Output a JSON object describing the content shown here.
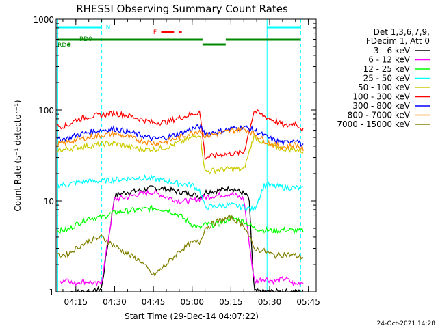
{
  "chart_data": {
    "type": "line",
    "title": "RHESSI Observing Summary Count Rates",
    "ylabel": "Count Rate (s⁻¹ detector⁻¹)",
    "xlabel": "Start Time (29-Dec-14 04:07:22)",
    "y_scale": "log",
    "ylim": [
      1,
      1000
    ],
    "y_ticks": [
      1,
      10,
      100,
      1000
    ],
    "y_tick_labels": [
      "1",
      "10",
      "100",
      "1000"
    ],
    "xlim": [
      "04:07:22",
      "05:48:00"
    ],
    "x_ticks": [
      "04:15",
      "04:30",
      "04:45",
      "05:00",
      "05:15",
      "05:30",
      "05:45"
    ],
    "legend_header": [
      "Det 1,3,6,7,9,",
      "FDecim 1, Att 0"
    ],
    "legend_position": "right",
    "footer_date": "24-Oct-2021 14:28",
    "series": [
      {
        "name": "3 - 6 keV",
        "color": "#000000",
        "x": [
          "04:13",
          "04:14",
          "04:16",
          "04:20",
          "04:22",
          "04:25",
          "04:30",
          "04:35",
          "04:40",
          "04:45",
          "04:50",
          "04:55",
          "05:00",
          "05:03",
          "05:05",
          "05:10",
          "05:15",
          "05:20",
          "05:22",
          "05:24",
          "05:26",
          "05:30",
          "05:35",
          "05:40",
          "05:43"
        ],
        "y": [
          1,
          1,
          1,
          1,
          1,
          1.1,
          11.5,
          12.5,
          13,
          14,
          13.5,
          12.5,
          12,
          11,
          12.5,
          13,
          14,
          12,
          11,
          1,
          1,
          1,
          1,
          1,
          1
        ]
      },
      {
        "name": "6 - 12 keV",
        "color": "#ff00ff",
        "x": [
          "04:09",
          "04:12",
          "04:14",
          "04:16",
          "04:20",
          "04:23",
          "04:25",
          "04:30",
          "04:35",
          "04:40",
          "04:45",
          "04:50",
          "04:55",
          "05:00",
          "05:05",
          "05:10",
          "05:15",
          "05:20",
          "05:24",
          "05:28",
          "05:32",
          "05:36",
          "05:40",
          "05:43"
        ],
        "y": [
          1.3,
          1.4,
          1.2,
          1.3,
          1.3,
          1.2,
          1.3,
          10.5,
          11,
          12,
          12.5,
          11,
          10,
          10,
          11,
          11.5,
          12,
          10.5,
          1.3,
          1.4,
          1.3,
          1.4,
          1.2,
          1.3
        ]
      },
      {
        "name": "12 - 25 keV",
        "color": "#00ff00",
        "x": [
          "04:08",
          "04:12",
          "04:15",
          "04:20",
          "04:25",
          "04:30",
          "04:35",
          "04:40",
          "04:45",
          "04:50",
          "04:55",
          "05:00",
          "05:03",
          "05:05",
          "05:10",
          "05:15",
          "05:20",
          "05:24",
          "05:28",
          "05:32",
          "05:36",
          "05:40",
          "05:43"
        ],
        "y": [
          4.7,
          4.8,
          5.5,
          6.5,
          6.6,
          7.5,
          7.8,
          8.0,
          8.3,
          8.0,
          7.0,
          5.5,
          5.0,
          5.5,
          5.5,
          6.5,
          6.0,
          5.0,
          4.8,
          4.7,
          4.8,
          4.7,
          4.7
        ]
      },
      {
        "name": "25 - 50 keV",
        "color": "#00ffff",
        "x": [
          "04:08",
          "04:12",
          "04:15",
          "04:20",
          "04:25",
          "04:30",
          "04:35",
          "04:40",
          "04:45",
          "04:50",
          "04:55",
          "05:00",
          "05:03",
          "05:05",
          "05:10",
          "05:15",
          "05:20",
          "05:24",
          "05:28",
          "05:32",
          "05:36",
          "05:40",
          "05:43"
        ],
        "y": [
          15,
          15,
          16,
          16.5,
          16.5,
          17,
          17.5,
          18,
          17.5,
          16.5,
          15.5,
          15,
          13,
          8.5,
          8.8,
          9.0,
          8.5,
          8.0,
          15,
          14.5,
          14,
          14,
          13.5
        ]
      },
      {
        "name": "50 - 100 keV",
        "color": "#cccc00",
        "x": [
          "04:08",
          "04:12",
          "04:15",
          "04:20",
          "04:25",
          "04:30",
          "04:35",
          "04:40",
          "04:45",
          "04:50",
          "04:55",
          "05:00",
          "05:03",
          "05:05",
          "05:10",
          "05:15",
          "05:20",
          "05:24",
          "05:28",
          "05:32",
          "05:36",
          "05:40",
          "05:43"
        ],
        "y": [
          36,
          37,
          39,
          40,
          42,
          43,
          40,
          37,
          37,
          39,
          44,
          50,
          55,
          21,
          22,
          22.5,
          22,
          52,
          42,
          39,
          37,
          37,
          35
        ]
      },
      {
        "name": "100 - 300 keV",
        "color": "#ff0000",
        "x": [
          "04:08",
          "04:12",
          "04:15",
          "04:20",
          "04:25",
          "04:30",
          "04:35",
          "04:40",
          "04:45",
          "04:50",
          "04:55",
          "05:00",
          "05:03",
          "05:05",
          "05:10",
          "05:15",
          "05:20",
          "05:24",
          "05:28",
          "05:32",
          "05:36",
          "05:40",
          "05:43"
        ],
        "y": [
          66,
          68,
          78,
          85,
          88,
          92,
          87,
          80,
          72,
          74,
          82,
          90,
          95,
          30,
          32,
          33,
          34,
          98,
          85,
          76,
          66,
          72,
          60
        ]
      },
      {
        "name": "300 - 800 keV",
        "color": "#0000ff",
        "x": [
          "04:08",
          "04:12",
          "04:15",
          "04:20",
          "04:25",
          "04:30",
          "04:35",
          "04:40",
          "04:45",
          "04:50",
          "04:55",
          "05:00",
          "05:03",
          "05:05",
          "05:10",
          "05:15",
          "05:20",
          "05:24",
          "05:28",
          "05:32",
          "05:36",
          "05:40",
          "05:43"
        ],
        "y": [
          47,
          49,
          53,
          57,
          60,
          62,
          58,
          53,
          48,
          50,
          55,
          62,
          66,
          55,
          58,
          62,
          65,
          60,
          52,
          46,
          43,
          48,
          40
        ]
      },
      {
        "name": "800 - 7000 keV",
        "color": "#ff8800",
        "x": [
          "04:08",
          "04:12",
          "04:15",
          "04:20",
          "04:25",
          "04:30",
          "04:35",
          "04:40",
          "04:45",
          "04:50",
          "04:55",
          "05:00",
          "05:03",
          "05:05",
          "05:10",
          "05:15",
          "05:20",
          "05:24",
          "05:28",
          "05:32",
          "05:36",
          "05:40",
          "05:43"
        ],
        "y": [
          42,
          44,
          47,
          50,
          53,
          55,
          51,
          46,
          43,
          45,
          50,
          56,
          60,
          52,
          55,
          59,
          62,
          55,
          46,
          41,
          39,
          42,
          37
        ]
      },
      {
        "name": "7000 - 15000 keV",
        "color": "#808000",
        "x": [
          "04:08",
          "04:12",
          "04:15",
          "04:20",
          "04:25",
          "04:30",
          "04:35",
          "04:40",
          "04:45",
          "04:50",
          "04:55",
          "05:00",
          "05:03",
          "05:05",
          "05:10",
          "05:15",
          "05:20",
          "05:24",
          "05:28",
          "05:32",
          "05:36",
          "05:40",
          "05:43"
        ],
        "y": [
          2.5,
          2.6,
          3.0,
          3.6,
          4.0,
          3.2,
          2.6,
          2.2,
          1.5,
          2.0,
          2.8,
          3.5,
          3.5,
          5.0,
          6.0,
          6.5,
          5.5,
          3.0,
          2.8,
          2.5,
          2.6,
          2.5,
          2.4
        ]
      }
    ],
    "flags": [
      {
        "label": "N",
        "color": "#00ffff",
        "segments": [
          [
            "04:08",
            "04:25"
          ],
          [
            "05:29",
            "05:42"
          ]
        ]
      },
      {
        "label": "RD0",
        "color": "#008800",
        "segments": [
          [
            "04:08",
            "05:04"
          ],
          [
            "05:04",
            "05:13"
          ],
          [
            "05:13",
            "05:42"
          ]
        ]
      },
      {
        "label": "RD6",
        "color": "#008800",
        "segments": [
          [
            "04:12",
            "04:13"
          ]
        ]
      },
      {
        "label": "F",
        "color": "#ff0000",
        "segments": [
          [
            "04:48",
            "04:53"
          ],
          [
            "04:55",
            "04:56"
          ]
        ]
      }
    ],
    "vertical_markers": [
      {
        "time": "04:08",
        "color": "#00ffff",
        "style": "solid"
      },
      {
        "time": "04:25",
        "color": "#00ffff",
        "style": "dashed"
      },
      {
        "time": "05:29",
        "color": "#00ffff",
        "style": "solid"
      },
      {
        "time": "05:42",
        "color": "#00ffff",
        "style": "dashed"
      }
    ]
  }
}
